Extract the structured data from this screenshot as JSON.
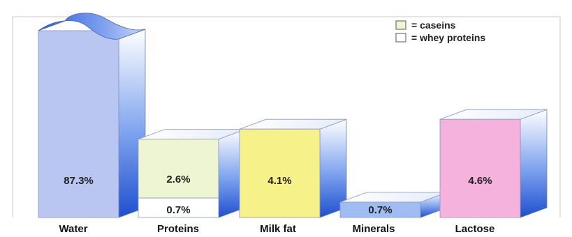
{
  "chart_data": {
    "type": "bar",
    "title": "",
    "xlabel": "",
    "ylabel": "",
    "categories": [
      "Water",
      "Proteins",
      "Milk fat",
      "Minerals",
      "Lactose"
    ],
    "bars": [
      {
        "category": "Water",
        "value": 87.3,
        "label": "87.3%",
        "color": "#b9c6f2",
        "side_color": "#3f6fd8"
      },
      {
        "category": "Proteins",
        "segments": [
          {
            "name": "caseins",
            "value": 2.6,
            "label": "2.6%",
            "color": "#eef5d2"
          },
          {
            "name": "whey proteins",
            "value": 0.7,
            "label": "0.7%",
            "color": "#ffffff"
          }
        ],
        "side_color": "#4d7fe0"
      },
      {
        "category": "Milk fat",
        "value": 4.1,
        "label": "4.1%",
        "color": "#f7f18a",
        "side_color": "#3f6fd8"
      },
      {
        "category": "Minerals",
        "value": 0.7,
        "label": "0.7%",
        "color": "#9fbdf2",
        "side_color": "#3f6fd8"
      },
      {
        "category": "Lactose",
        "value": 4.6,
        "label": "4.6%",
        "color": "#f4b2dc",
        "side_color": "#3f6fd8"
      }
    ],
    "legend": {
      "position": "top-right",
      "items": [
        {
          "label": "= caseins",
          "color": "#eef5d2"
        },
        {
          "label": "= whey proteins",
          "color": "#ffffff"
        }
      ]
    },
    "grid": false,
    "note": ""
  }
}
